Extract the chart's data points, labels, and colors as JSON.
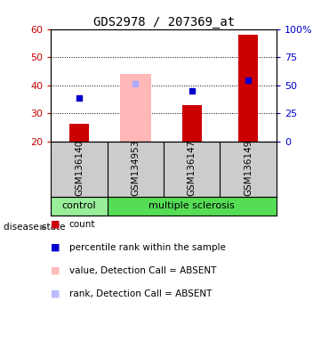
{
  "title": "GDS2978 / 207369_at",
  "samples": [
    "GSM136140",
    "GSM134953",
    "GSM136147",
    "GSM136149"
  ],
  "bar_values": [
    26.5,
    0,
    33,
    58
  ],
  "absent_bar_values": [
    0,
    44,
    0,
    0
  ],
  "blue_dot_values": [
    35.5,
    40.5,
    38,
    42
  ],
  "blue_dot_absent": [
    false,
    true,
    false,
    false
  ],
  "ylim_left": [
    20,
    60
  ],
  "ylim_right": [
    0,
    100
  ],
  "yticks_left": [
    20,
    30,
    40,
    50,
    60
  ],
  "yticks_right": [
    0,
    25,
    50,
    75,
    100
  ],
  "ytick_labels_right": [
    "0",
    "25",
    "50",
    "75",
    "100%"
  ],
  "legend_colors": [
    "#cc0000",
    "#0000cc",
    "#ffbbbb",
    "#bbbbff"
  ],
  "legend_labels": [
    "count",
    "percentile rank within the sample",
    "value, Detection Call = ABSENT",
    "rank, Detection Call = ABSENT"
  ],
  "bar_red": "#cc0000",
  "bar_pink": "#ffb8b8",
  "dot_blue": "#0000cc",
  "dot_lightblue": "#aaaaff",
  "control_color": "#99ee99",
  "ms_color": "#55dd55",
  "label_bg": "#cccccc",
  "title_fontsize": 10,
  "tick_fontsize": 8,
  "legend_fontsize": 7.5
}
